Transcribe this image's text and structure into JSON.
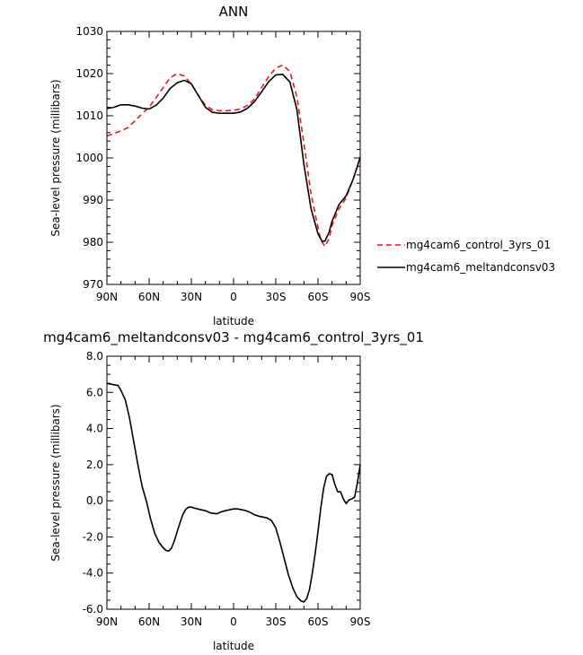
{
  "chart_data": [
    {
      "type": "line",
      "title": "ANN",
      "xlabel": "latitude",
      "ylabel": "Sea-level pressure (millibars)",
      "xlim": [
        90,
        -90
      ],
      "ylim": [
        970,
        1030
      ],
      "xticks": [
        90,
        60,
        30,
        0,
        -30,
        -60,
        -90
      ],
      "xtick_labels": [
        "90N",
        "60N",
        "30N",
        "0",
        "30S",
        "60S",
        "90S"
      ],
      "yticks": [
        970,
        980,
        990,
        1000,
        1010,
        1020,
        1030
      ],
      "ytick_labels": [
        "970",
        "980",
        "990",
        "1000",
        "1010",
        "1020",
        "1030"
      ],
      "legend_position": "right",
      "series": [
        {
          "name": "mg4cam6_control_3yrs_01",
          "color": "#e8191c",
          "dash": "dashed",
          "x": [
            90,
            85,
            80,
            75,
            70,
            65,
            60,
            55,
            50,
            45,
            40,
            35,
            30,
            25,
            20,
            15,
            10,
            5,
            0,
            -5,
            -10,
            -15,
            -20,
            -25,
            -30,
            -35,
            -40,
            -45,
            -50,
            -55,
            -60,
            -62,
            -65,
            -68,
            -70,
            -75,
            -80,
            -85,
            -90
          ],
          "y": [
            1005.2,
            1005.8,
            1006.4,
            1007.2,
            1008.8,
            1010.5,
            1012.0,
            1014.3,
            1016.7,
            1019.0,
            1020.0,
            1019.4,
            1017.5,
            1014.8,
            1012.5,
            1011.4,
            1011.2,
            1011.2,
            1011.3,
            1011.6,
            1012.5,
            1014.0,
            1016.7,
            1019.3,
            1021.3,
            1022.0,
            1020.5,
            1014.5,
            1003.5,
            991.5,
            983.5,
            980.5,
            979.0,
            981.0,
            984.0,
            988.0,
            990.5,
            995.0,
            999.8
          ]
        },
        {
          "name": "mg4cam6_meltandconsv03",
          "color": "#000000",
          "dash": "solid",
          "x": [
            90,
            85,
            80,
            75,
            70,
            65,
            60,
            55,
            50,
            45,
            40,
            35,
            30,
            25,
            20,
            15,
            10,
            5,
            0,
            -5,
            -10,
            -15,
            -20,
            -25,
            -30,
            -35,
            -40,
            -45,
            -50,
            -55,
            -60,
            -63,
            -65,
            -68,
            -70,
            -75,
            -80,
            -85,
            -90
          ],
          "y": [
            1011.7,
            1012.0,
            1012.6,
            1012.6,
            1012.3,
            1011.8,
            1011.6,
            1012.5,
            1014.2,
            1016.5,
            1017.8,
            1018.4,
            1017.6,
            1014.8,
            1012.0,
            1010.8,
            1010.6,
            1010.6,
            1010.6,
            1010.9,
            1011.8,
            1013.4,
            1015.7,
            1018.1,
            1019.7,
            1019.8,
            1018.0,
            1011.5,
            998.5,
            988.0,
            982.0,
            980.2,
            980.3,
            982.5,
            985.0,
            989.0,
            991.0,
            995.0,
            1000.2
          ]
        }
      ]
    },
    {
      "type": "line",
      "title": "mg4cam6_meltandconsv03 - mg4cam6_control_3yrs_01",
      "xlabel": "latitude",
      "ylabel": "Sea-level pressure (millibars)",
      "xlim": [
        90,
        -90
      ],
      "ylim": [
        -6,
        8
      ],
      "xticks": [
        90,
        60,
        30,
        0,
        -30,
        -60,
        -90
      ],
      "xtick_labels": [
        "90N",
        "60N",
        "30N",
        "0",
        "30S",
        "60S",
        "90S"
      ],
      "yticks": [
        -6,
        -4,
        -2,
        0,
        2,
        4,
        6,
        8
      ],
      "ytick_labels": [
        "-6.0",
        "-4.0",
        "-2.0",
        "0.0",
        "2.0",
        "4.0",
        "6.0",
        "8.0"
      ],
      "series": [
        {
          "color": "#000000",
          "dash": "solid",
          "x": [
            90,
            87,
            84,
            82,
            80,
            77,
            74,
            71,
            68,
            65,
            62,
            59,
            56,
            53,
            50,
            48,
            46,
            44,
            42,
            40,
            38,
            36,
            34,
            32,
            30,
            27,
            24,
            20,
            16,
            12,
            9,
            6,
            3,
            0,
            -3,
            -6,
            -9,
            -12,
            -15,
            -18,
            -21,
            -24,
            -27,
            -30,
            -33,
            -36,
            -39,
            -42,
            -45,
            -48,
            -50,
            -52,
            -54,
            -56,
            -58,
            -60,
            -62,
            -64,
            -66,
            -68,
            -70,
            -72,
            -74,
            -76,
            -78,
            -80,
            -82,
            -84,
            -86,
            -88,
            -90
          ],
          "y": [
            6.5,
            6.45,
            6.4,
            6.38,
            6.1,
            5.6,
            4.6,
            3.3,
            2.0,
            0.8,
            0.0,
            -1.0,
            -1.8,
            -2.3,
            -2.6,
            -2.75,
            -2.78,
            -2.6,
            -2.2,
            -1.7,
            -1.2,
            -0.75,
            -0.48,
            -0.35,
            -0.35,
            -0.42,
            -0.48,
            -0.55,
            -0.68,
            -0.72,
            -0.62,
            -0.55,
            -0.5,
            -0.45,
            -0.45,
            -0.5,
            -0.55,
            -0.65,
            -0.78,
            -0.85,
            -0.9,
            -0.95,
            -1.1,
            -1.5,
            -2.3,
            -3.2,
            -4.1,
            -4.8,
            -5.3,
            -5.55,
            -5.6,
            -5.4,
            -4.9,
            -4.0,
            -2.9,
            -1.7,
            -0.4,
            0.7,
            1.35,
            1.5,
            1.45,
            0.9,
            0.5,
            0.5,
            0.1,
            -0.15,
            0.05,
            0.1,
            0.2,
            1.0,
            2.0
          ]
        }
      ]
    }
  ]
}
